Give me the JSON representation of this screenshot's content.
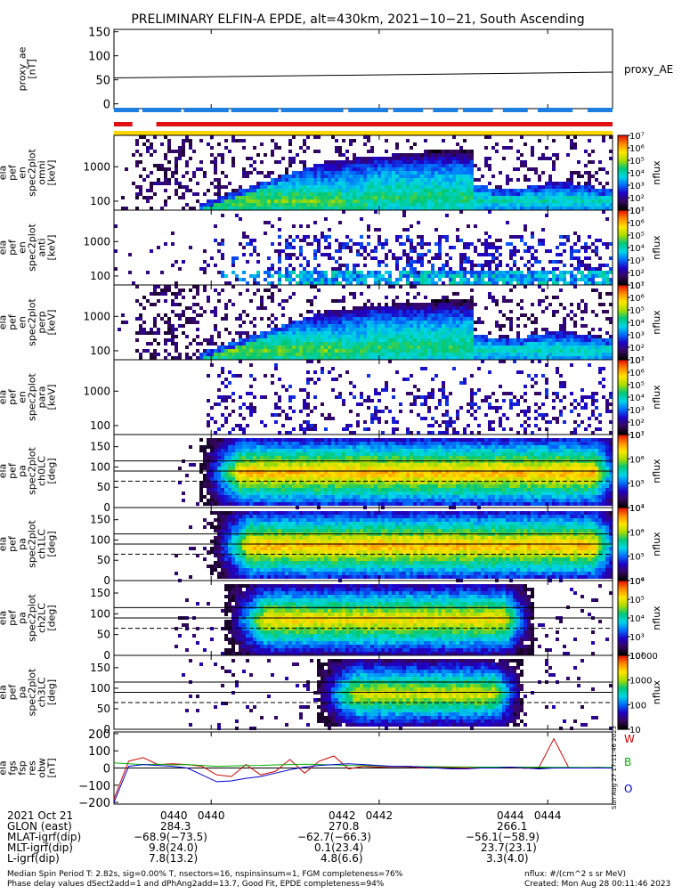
{
  "title": "PRELIMINARY ELFIN-A EPDE, alt=430km, 2021−10−21, South Ascending",
  "colors": {
    "bar_blue": "#1e7fe0",
    "bar_red": "#e01010",
    "bar_yellow": "#ffd800",
    "w_label": "#d00000",
    "b_label": "#00b000",
    "o_label": "#0000d0",
    "spec_black": "#000000",
    "spec_purple": "#3b0a5a"
  },
  "chart_data": [
    {
      "type": "line",
      "ylabel": "proxy_ae\n[nT]",
      "ylim": [
        -10,
        155
      ],
      "yticks": [
        "150",
        "100",
        "50",
        "0"
      ],
      "ytick_values": [
        150,
        100,
        50,
        0
      ],
      "series": [
        {
          "name": "proxy_AE",
          "x": [
            0,
            1
          ],
          "values": [
            54,
            66
          ]
        }
      ]
    },
    {
      "type": "heatmap",
      "ylabel": "ela\npef\nen\nspec2plot\nomni\n[keV]",
      "yticks": [
        "1000",
        "100"
      ],
      "scale": "log",
      "colorbar": {
        "label": "nflux",
        "ticks": [
          "10⁷",
          "10⁶",
          "10⁵",
          "10⁴",
          "10³",
          "10²",
          "10¹"
        ]
      }
    },
    {
      "type": "heatmap",
      "ylabel": "ela\npef\nen\nspec2plot\nanti\n[keV]",
      "yticks": [
        "1000",
        "100"
      ],
      "scale": "log",
      "colorbar": {
        "label": "nflux",
        "ticks": [
          "10⁷",
          "10⁶",
          "10⁵",
          "10⁴",
          "10³",
          "10²",
          "10¹"
        ]
      }
    },
    {
      "type": "heatmap",
      "ylabel": "ela\npef\nen\nspec2plot\nperp\n[keV]",
      "yticks": [
        "1000",
        "100"
      ],
      "scale": "log",
      "colorbar": {
        "label": "nflux",
        "ticks": [
          "10⁷",
          "10⁶",
          "10⁵",
          "10⁴",
          "10³",
          "10²",
          "10¹"
        ]
      }
    },
    {
      "type": "heatmap",
      "ylabel": "ela\npef\nen\nspec2plot\npara\n[keV]",
      "yticks": [
        "1000",
        "100"
      ],
      "scale": "log",
      "colorbar": {
        "label": "nflux",
        "ticks": [
          "10⁷",
          "10⁶",
          "10⁵",
          "10⁴",
          "10³",
          "10²",
          "10¹"
        ]
      }
    },
    {
      "type": "heatmap",
      "ylabel": "ela\npef\npa\nspec2plot\nch0LC\n[deg]",
      "yticks": [
        "150",
        "100",
        "50",
        "0"
      ],
      "ytick_values": [
        150,
        100,
        50,
        0
      ],
      "ylim": [
        0,
        180
      ],
      "colorbar": {
        "label": "nflux",
        "ticks": [
          "10⁷",
          "10⁶",
          "10⁵",
          "10⁴"
        ]
      }
    },
    {
      "type": "heatmap",
      "ylabel": "ela\npef\npa\nspec2plot\nch1LC\n[deg]",
      "yticks": [
        "150",
        "100",
        "50",
        "0"
      ],
      "ytick_values": [
        150,
        100,
        50,
        0
      ],
      "ylim": [
        0,
        180
      ],
      "colorbar": {
        "label": "nflux",
        "ticks": [
          "10⁷",
          "10⁶",
          "10⁵",
          "10⁴"
        ]
      }
    },
    {
      "type": "heatmap",
      "ylabel": "ela\npef\npa\nspec2plot\nch2LC\n[deg]",
      "yticks": [
        "150",
        "100",
        "50",
        "0"
      ],
      "ytick_values": [
        150,
        100,
        50,
        0
      ],
      "ylim": [
        0,
        180
      ],
      "colorbar": {
        "label": "nflux",
        "ticks": [
          "10⁶",
          "10⁵",
          "10⁴",
          "10³",
          "10²"
        ]
      }
    },
    {
      "type": "heatmap",
      "ylabel": "ela\npef\npa\nspec2plot\nch3LC\n[deg]",
      "yticks": [
        "150",
        "100",
        "50",
        "0"
      ],
      "ytick_values": [
        150,
        100,
        50,
        0
      ],
      "ylim": [
        0,
        180
      ],
      "colorbar": {
        "label": "nflux",
        "ticks": [
          "10000",
          "1000",
          "100",
          "10"
        ]
      }
    },
    {
      "type": "line",
      "ylabel": "ela\nfgs\nfsp\nres\nobw\n[nT]",
      "yticks": [
        "200",
        "100",
        "0",
        "−100",
        "−200"
      ],
      "ytick_values": [
        200,
        100,
        0,
        -100,
        -200
      ],
      "ylim": [
        -210,
        210
      ],
      "series": [
        {
          "name": "W",
          "values": [
            -180,
            40,
            60,
            20,
            25,
            20,
            10,
            -40,
            -50,
            20,
            -40,
            -20,
            50,
            -30,
            40,
            70,
            -5,
            10,
            5,
            8,
            6,
            0,
            5,
            3,
            0,
            2,
            1,
            4,
            -2,
            6,
            170,
            3,
            2,
            4,
            1
          ]
        },
        {
          "name": "B",
          "values": [
            30,
            25,
            20,
            22,
            18,
            20,
            15,
            10,
            12,
            14,
            15,
            18,
            20,
            22,
            20,
            18,
            15,
            14,
            12,
            10,
            10,
            8,
            8,
            6,
            6,
            5,
            5,
            5,
            5,
            5,
            4,
            4,
            3,
            3,
            3
          ]
        },
        {
          "name": "O",
          "values": [
            -200,
            10,
            20,
            15,
            10,
            0,
            -40,
            -80,
            -75,
            -60,
            -50,
            -30,
            -10,
            5,
            15,
            20,
            25,
            20,
            15,
            10,
            10,
            5,
            0,
            -5,
            -5,
            0,
            0,
            5,
            0,
            -5,
            0,
            0,
            0,
            0,
            0
          ]
        }
      ],
      "legend": [
        "W",
        "B",
        "O"
      ]
    }
  ],
  "xaxis_ticks": [
    "0440",
    "0442",
    "0444"
  ],
  "side_stamp": "Sun Aug 27 17:11:46 2023",
  "info_rows": [
    {
      "label": "2021 Oct 21",
      "values": [
        "0440",
        "0442",
        "0444"
      ]
    },
    {
      "label": "GLON (east)",
      "values": [
        "284.3",
        "270.8",
        "266.1"
      ]
    },
    {
      "label": "MLAT-igrf(dip)",
      "values": [
        "−68.9(−73.5)",
        "−62.7(−66.3)",
        "−56.1(−58.9)"
      ]
    },
    {
      "label": "MLT-igrf(dip)",
      "values": [
        "9.8(24.0)",
        "0.1(23.4)",
        "23.7(23.1)"
      ]
    },
    {
      "label": "L-igrf(dip)",
      "values": [
        "7.8(13.2)",
        "4.8(6.6)",
        "3.3(4.0)"
      ]
    }
  ],
  "footer": {
    "line1": "Median Spin Period T: 2.82s, sig=0.00% T, nsectors=16, nspinsinsum=1, FGM completeness=76%",
    "line2": "Phase delay values dSect2add=1 and dPhAng2add=13.7, Good Fit, EPDE completeness=94%",
    "right1": "nflux: #/(cm^2 s sr MeV)",
    "right2": "Created: Mon Aug 28 00:11:46 2023"
  }
}
